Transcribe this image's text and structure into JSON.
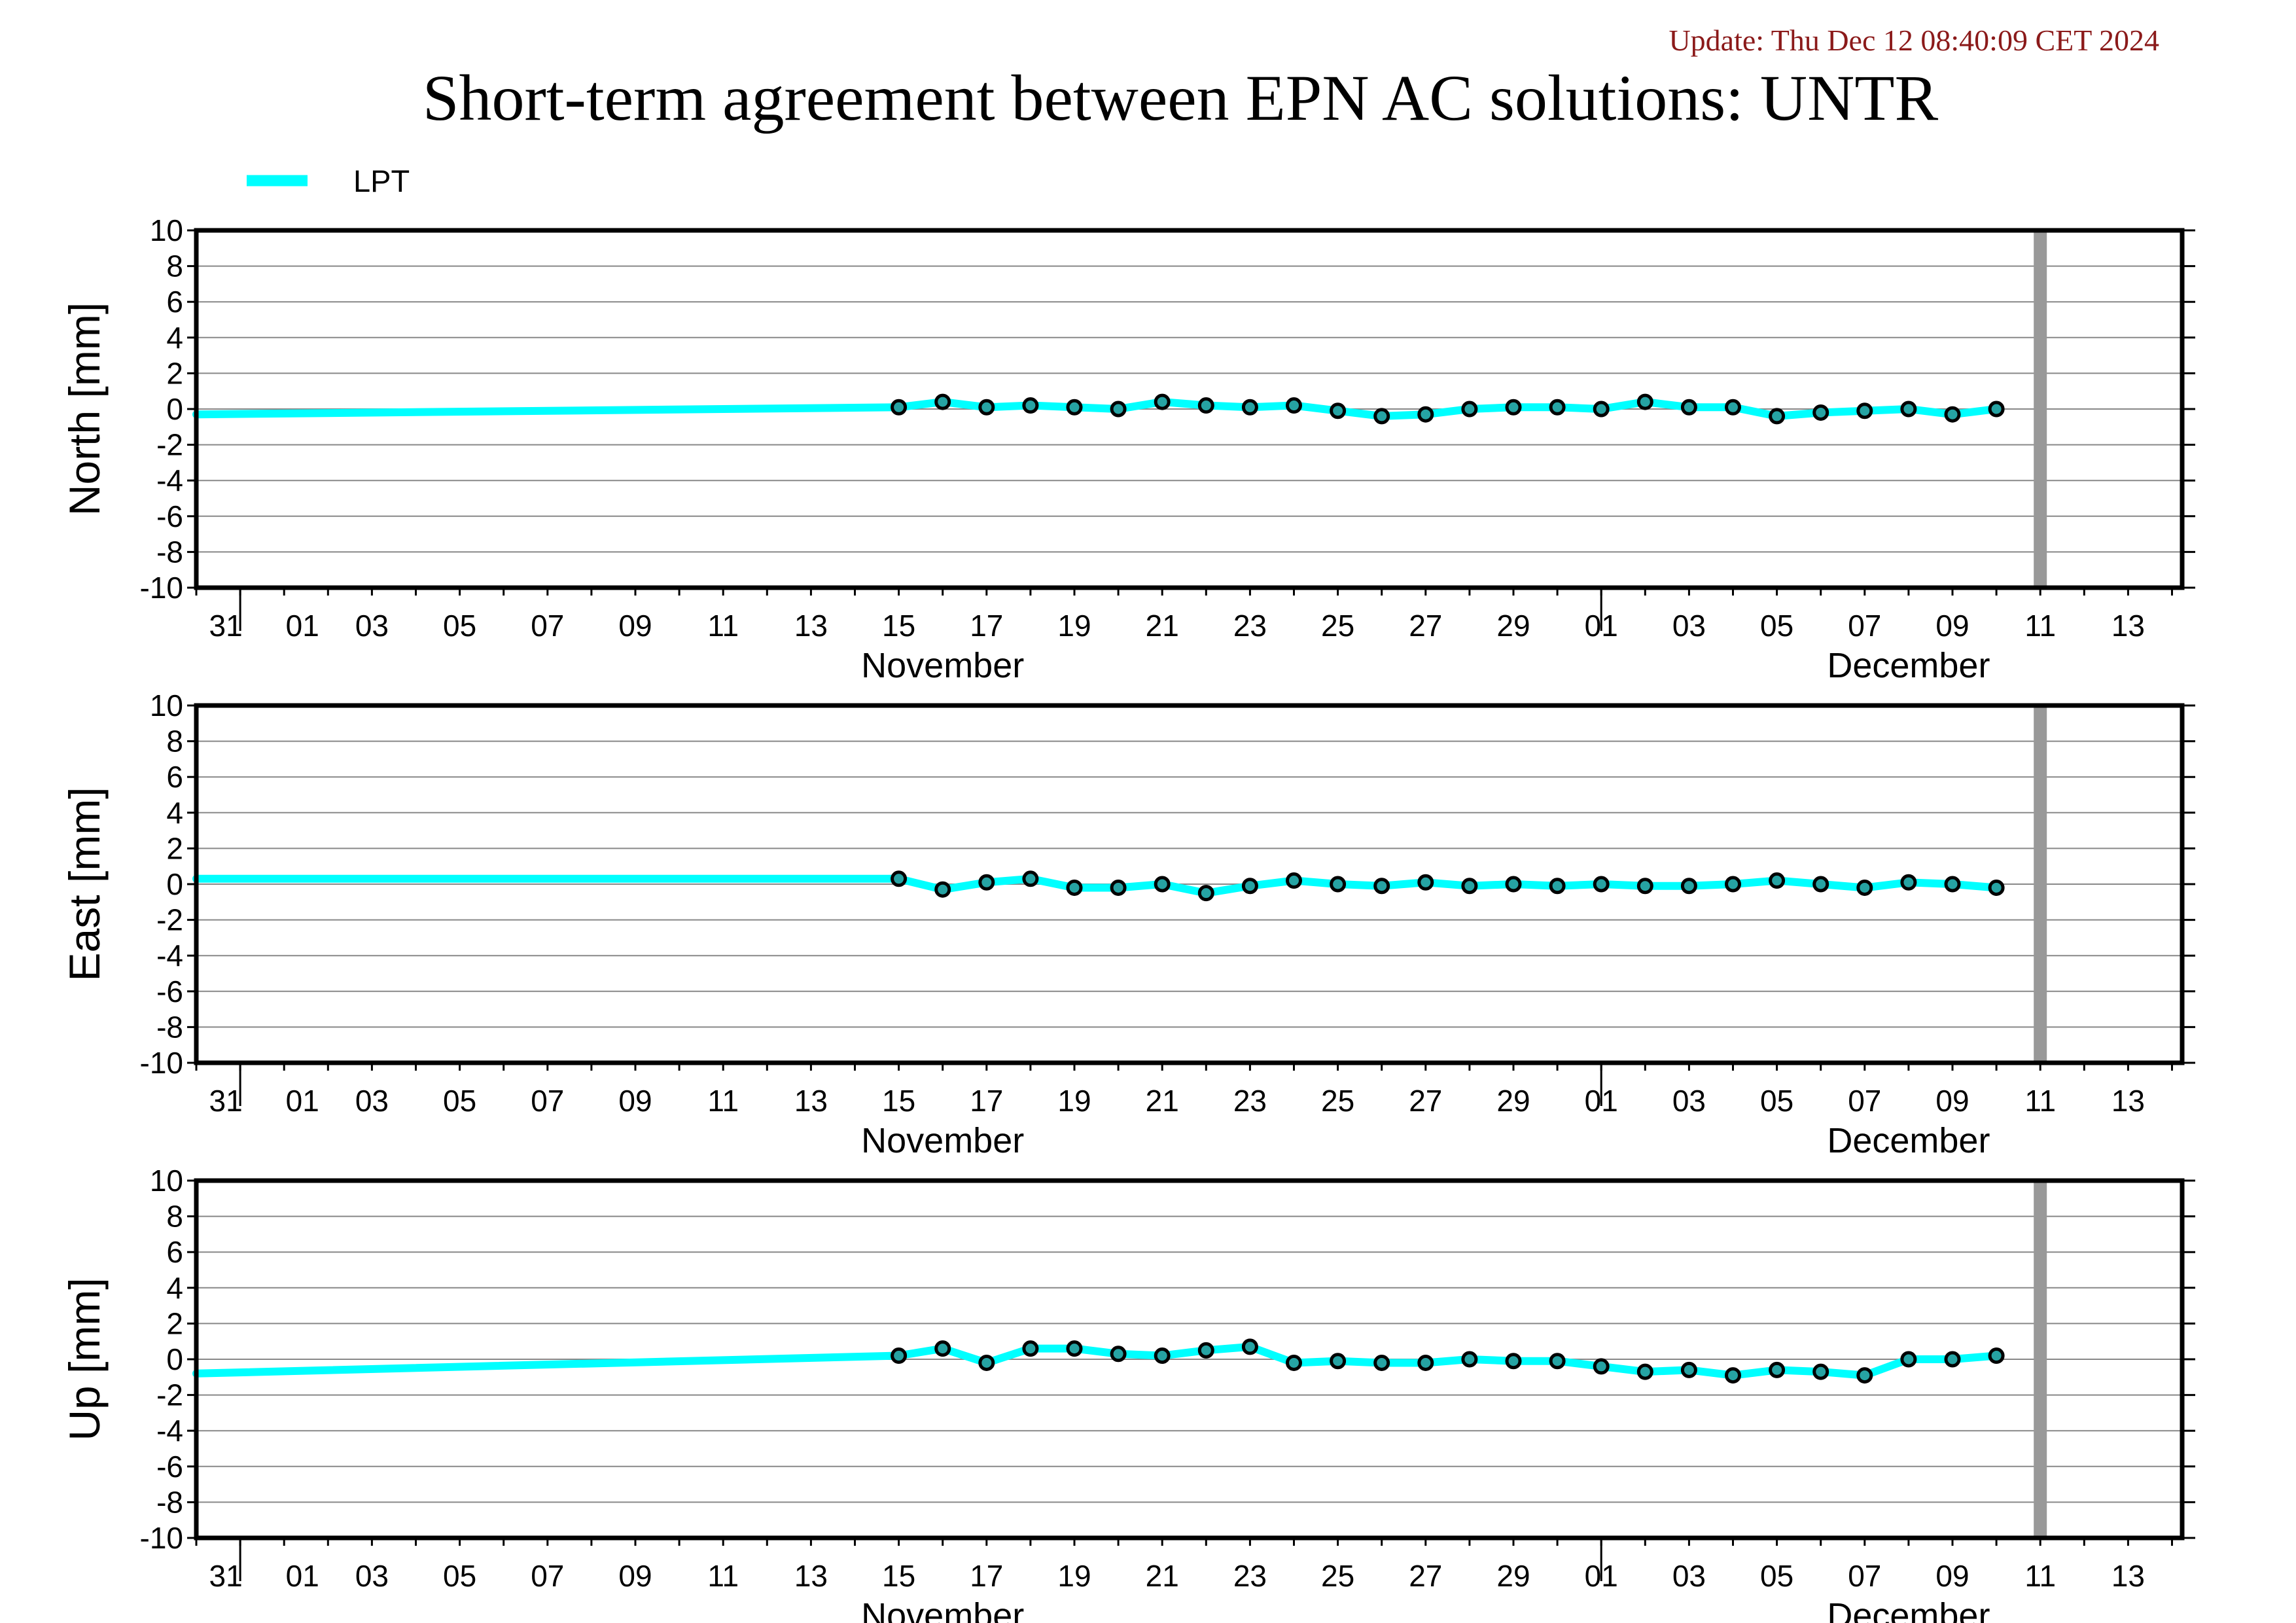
{
  "update_text": "Update: Thu Dec 12 08:40:09 CET 2024",
  "title": "Short-term agreement between EPN AC solutions: UNTR",
  "legend": {
    "label": "LPT"
  },
  "colors": {
    "series": "#00ffff",
    "update_text": "#8b1a1a",
    "marker_fill": "#26a3a3",
    "future_band": "#999999",
    "grid": "#888888"
  },
  "x_tick_labels": [
    "31",
    "01",
    "03",
    "05",
    "07",
    "09",
    "11",
    "13",
    "15",
    "17",
    "19",
    "21",
    "23",
    "25",
    "27",
    "29",
    "01",
    "03",
    "05",
    "07",
    "09",
    "11",
    "13"
  ],
  "month_labels": [
    "November",
    "December"
  ],
  "chart_data": [
    {
      "type": "line",
      "ylabel": "North [mm]",
      "ylim": [
        -10,
        10
      ],
      "xlim": [
        "2024-10-30",
        "2024-12-14"
      ],
      "y_ticks": [
        "10",
        "8",
        "6",
        "4",
        "2",
        "0",
        "-2",
        "-4",
        "-6",
        "-8",
        "-10"
      ],
      "current_date_marker": "2024-12-11",
      "series": [
        {
          "name": "LPT",
          "x": [
            "2024-10-30",
            "2024-11-15",
            "2024-11-16",
            "2024-11-17",
            "2024-11-18",
            "2024-11-19",
            "2024-11-20",
            "2024-11-21",
            "2024-11-22",
            "2024-11-23",
            "2024-11-24",
            "2024-11-25",
            "2024-11-26",
            "2024-11-27",
            "2024-11-28",
            "2024-11-29",
            "2024-11-30",
            "2024-12-01",
            "2024-12-02",
            "2024-12-03",
            "2024-12-04",
            "2024-12-05",
            "2024-12-06",
            "2024-12-07",
            "2024-12-08",
            "2024-12-09",
            "2024-12-10"
          ],
          "y": [
            -0.3,
            0.1,
            0.4,
            0.1,
            0.2,
            0.1,
            0.0,
            0.4,
            0.2,
            0.1,
            0.2,
            -0.1,
            -0.4,
            -0.3,
            0.0,
            0.1,
            0.1,
            0.0,
            0.4,
            0.1,
            0.1,
            -0.4,
            -0.2,
            -0.1,
            0.0,
            -0.3,
            0.0
          ],
          "markers": [
            false,
            true,
            true,
            true,
            true,
            true,
            true,
            true,
            true,
            true,
            true,
            true,
            true,
            true,
            true,
            true,
            true,
            true,
            true,
            true,
            true,
            true,
            true,
            true,
            true,
            true,
            true
          ]
        }
      ]
    },
    {
      "type": "line",
      "ylabel": "East [mm]",
      "ylim": [
        -10,
        10
      ],
      "xlim": [
        "2024-10-30",
        "2024-12-14"
      ],
      "y_ticks": [
        "10",
        "8",
        "6",
        "4",
        "2",
        "0",
        "-2",
        "-4",
        "-6",
        "-8",
        "-10"
      ],
      "current_date_marker": "2024-12-11",
      "series": [
        {
          "name": "LPT",
          "x": [
            "2024-10-30",
            "2024-11-15",
            "2024-11-16",
            "2024-11-17",
            "2024-11-18",
            "2024-11-19",
            "2024-11-20",
            "2024-11-21",
            "2024-11-22",
            "2024-11-23",
            "2024-11-24",
            "2024-11-25",
            "2024-11-26",
            "2024-11-27",
            "2024-11-28",
            "2024-11-29",
            "2024-11-30",
            "2024-12-01",
            "2024-12-02",
            "2024-12-03",
            "2024-12-04",
            "2024-12-05",
            "2024-12-06",
            "2024-12-07",
            "2024-12-08",
            "2024-12-09",
            "2024-12-10"
          ],
          "y": [
            0.3,
            0.3,
            -0.3,
            0.1,
            0.3,
            -0.2,
            -0.2,
            0.0,
            -0.5,
            -0.1,
            0.2,
            0.0,
            -0.1,
            0.1,
            -0.1,
            0.0,
            -0.1,
            0.0,
            -0.1,
            -0.1,
            0.0,
            0.2,
            0.0,
            -0.2,
            0.1,
            0.0,
            -0.2
          ],
          "markers": [
            false,
            true,
            true,
            true,
            true,
            true,
            true,
            true,
            true,
            true,
            true,
            true,
            true,
            true,
            true,
            true,
            true,
            true,
            true,
            true,
            true,
            true,
            true,
            true,
            true,
            true,
            true
          ]
        }
      ]
    },
    {
      "type": "line",
      "ylabel": "Up [mm]",
      "ylim": [
        -10,
        10
      ],
      "xlim": [
        "2024-10-30",
        "2024-12-14"
      ],
      "y_ticks": [
        "10",
        "8",
        "6",
        "4",
        "2",
        "0",
        "-2",
        "-4",
        "-6",
        "-8",
        "-10"
      ],
      "current_date_marker": "2024-12-11",
      "series": [
        {
          "name": "LPT",
          "x": [
            "2024-10-30",
            "2024-11-15",
            "2024-11-16",
            "2024-11-17",
            "2024-11-18",
            "2024-11-19",
            "2024-11-20",
            "2024-11-21",
            "2024-11-22",
            "2024-11-23",
            "2024-11-24",
            "2024-11-25",
            "2024-11-26",
            "2024-11-27",
            "2024-11-28",
            "2024-11-29",
            "2024-11-30",
            "2024-12-01",
            "2024-12-02",
            "2024-12-03",
            "2024-12-04",
            "2024-12-05",
            "2024-12-06",
            "2024-12-07",
            "2024-12-08",
            "2024-12-09",
            "2024-12-10"
          ],
          "y": [
            -0.8,
            0.2,
            0.6,
            -0.2,
            0.6,
            0.6,
            0.3,
            0.2,
            0.5,
            0.7,
            -0.2,
            -0.1,
            -0.2,
            -0.2,
            0.0,
            -0.1,
            -0.1,
            -0.4,
            -0.7,
            -0.6,
            -0.9,
            -0.6,
            -0.7,
            -0.9,
            0.0,
            0.0,
            0.2
          ],
          "markers": [
            false,
            true,
            true,
            true,
            true,
            true,
            true,
            true,
            true,
            true,
            true,
            true,
            true,
            true,
            true,
            true,
            true,
            true,
            true,
            true,
            true,
            true,
            true,
            true,
            true,
            true,
            true
          ]
        }
      ]
    }
  ]
}
